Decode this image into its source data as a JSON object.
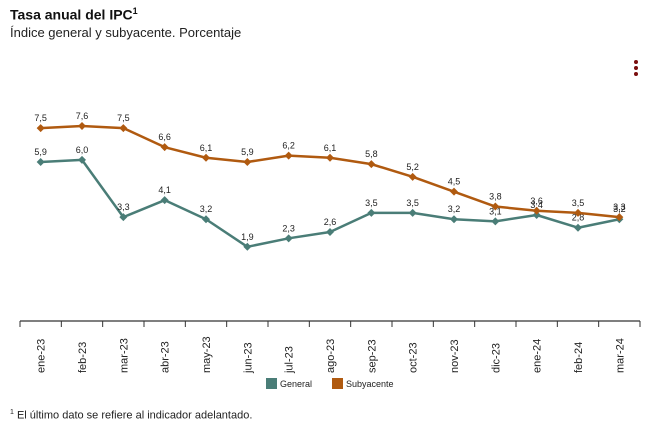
{
  "header": {
    "title": "Tasa anual del IPC",
    "title_sup": "1",
    "subtitle": "Índice general y subyacente. Porcentaje"
  },
  "footnote": {
    "sup": "1",
    "text": "El último dato se refiere al indicador adelantado."
  },
  "chart_data": {
    "type": "line",
    "title": "Tasa anual del IPC",
    "subtitle": "Índice general y subyacente. Porcentaje",
    "categories": [
      "ene-23",
      "feb-23",
      "mar-23",
      "abr-23",
      "may-23",
      "jun-23",
      "jul-23",
      "ago-23",
      "sep-23",
      "oct-23",
      "nov-23",
      "dic-23",
      "ene-24",
      "feb-24",
      "mar-24"
    ],
    "ylim": [
      -1.6,
      8.5
    ],
    "legend_position": "bottom",
    "series": [
      {
        "name": "General",
        "color": "#4a7d77",
        "values": [
          5.9,
          6.0,
          3.3,
          4.1,
          3.2,
          1.9,
          2.3,
          2.6,
          3.5,
          3.5,
          3.2,
          3.1,
          3.4,
          2.8,
          3.2
        ],
        "labels": [
          "5,9",
          "6,0",
          "3,3",
          "4,1",
          "3,2",
          "1,9",
          "2,3",
          "2,6",
          "3,5",
          "3,5",
          "3,2",
          "3,1",
          "3,4",
          "2,8",
          "3,2"
        ]
      },
      {
        "name": "Subyacente",
        "color": "#b05a10",
        "values": [
          7.5,
          7.6,
          7.5,
          6.6,
          6.1,
          5.9,
          6.2,
          6.1,
          5.8,
          5.2,
          4.5,
          3.8,
          3.6,
          3.5,
          3.3
        ],
        "labels": [
          "7,5",
          "7,6",
          "7,5",
          "6,6",
          "6,1",
          "5,9",
          "6,2",
          "6,1",
          "5,8",
          "5,2",
          "4,5",
          "3,8",
          "3,6",
          "3,5",
          "3,3"
        ]
      }
    ]
  }
}
